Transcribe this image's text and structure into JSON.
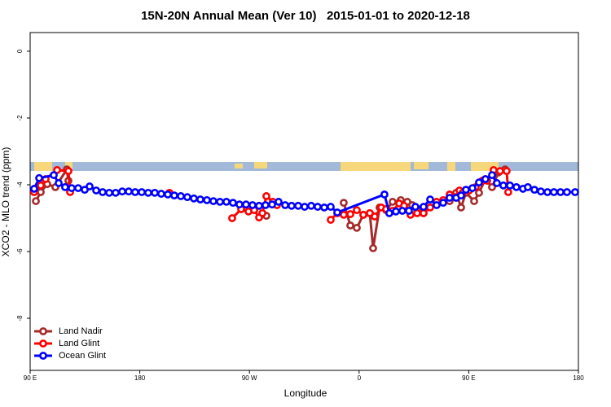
{
  "chart_data": {
    "type": "line",
    "title": "15N-20N Annual Mean (Ver 10)   2015-01-01 to 2020-12-18",
    "x_label": "Longitude",
    "y_label": "XCO2 - MLO trend (ppm)",
    "xlim": [
      90,
      540
    ],
    "ylim": [
      -9.56,
      0.56
    ],
    "xticks": [
      {
        "value": 90,
        "label": "90 E"
      },
      180,
      {
        "value": 270,
        "label": "90 W"
      },
      {
        "value": 360,
        "label": "0"
      },
      {
        "value": 450,
        "label": "90 E"
      },
      {
        "value": 540,
        "label": "180"
      }
    ],
    "yticks": [
      0,
      -2,
      -4,
      -6,
      -8
    ],
    "legend": "bottom-left",
    "series": [
      {
        "name": "Land Nadir",
        "color": "#a52a2a",
        "x": [
          94.7,
          98.7,
          104.0,
          110.7,
          120.1,
          121.4,
          null,
          283.9,
          null,
          347.4,
          352.8,
          358.1,
          363.5,
          368.8,
          371.5,
          376.8,
          382.2,
          387.5,
          394.2,
          399.6,
          403.6,
          407.6,
          412.9,
          null,
          434.3,
          439.7,
          443.7,
          447.7,
          454.4,
          458.4,
          463.7,
          469.1,
          474.4,
          479.8
        ],
        "values": [
          -4.49,
          -4.22,
          -3.98,
          -4.07,
          -3.54,
          -3.88,
          null,
          -4.93,
          null,
          -4.54,
          -5.22,
          -5.29,
          -4.9,
          -4.85,
          -5.9,
          -4.68,
          -4.76,
          -4.51,
          -4.46,
          -4.51,
          -4.61,
          -4.76,
          -4.85,
          null,
          -4.49,
          -4.24,
          -4.68,
          -4.24,
          -4.49,
          -4.24,
          -3.83,
          -4.07,
          -3.63,
          -3.54
        ]
      },
      {
        "name": "Land Glint",
        "color": "#ff0000",
        "x": [
          93.3,
          98.7,
          102.7,
          112.1,
          121.4,
          122.8,
          null,
          204.3,
          null,
          255.8,
          263.2,
          269.2,
          273.9,
          277.9,
          280.6,
          283.9,
          289.2,
          292.6,
          null,
          336.7,
          342.1,
          347.4,
          352.8,
          358.1,
          363.5,
          368.8,
          372.8,
          378.2,
          382.2,
          387.5,
          392.9,
          396.9,
          402.2,
          407.6,
          412.9,
          418.3,
          423.6,
          429.0,
          434.3,
          438.3,
          442.4,
          445.0,
          450.4,
          455.7,
          461.1,
          465.1,
          470.4,
          475.7,
          481.1,
          482.4
        ],
        "values": [
          -4.22,
          -4.02,
          -3.83,
          -3.56,
          -3.59,
          -4.22,
          null,
          -4.24,
          null,
          -5.0,
          -4.73,
          -4.8,
          -4.76,
          -4.98,
          -4.85,
          -4.34,
          -4.51,
          -4.61,
          null,
          -5.05,
          -4.85,
          -4.9,
          -4.88,
          -4.76,
          -4.9,
          -4.85,
          -4.95,
          -4.68,
          -4.73,
          -4.78,
          -4.56,
          -4.63,
          -4.9,
          -4.85,
          -4.85,
          -4.68,
          -4.51,
          -4.46,
          -4.29,
          -4.37,
          -4.17,
          -4.24,
          -4.17,
          -4.07,
          -3.88,
          -3.88,
          -3.56,
          -3.59,
          -3.59,
          -4.22
        ]
      },
      {
        "name": "Ocean Glint",
        "color": "#0000ff",
        "x": [
          93.3,
          97.4,
          109.4,
          113.4,
          118.7,
          124.1,
          129.4,
          134.8,
          138.8,
          144.2,
          149.5,
          154.9,
          160.2,
          165.6,
          170.9,
          176.2,
          181.6,
          186.9,
          192.3,
          197.6,
          203.0,
          208.3,
          213.7,
          219.0,
          224.4,
          229.7,
          235.1,
          240.4,
          245.8,
          251.1,
          256.5,
          261.8,
          267.2,
          272.5,
          277.9,
          283.2,
          288.6,
          293.9,
          299.3,
          304.6,
          310.0,
          315.3,
          320.7,
          326.0,
          331.4,
          336.7,
          342.1,
          380.8,
          384.8,
          390.2,
          395.5,
          400.9,
          406.2,
          412.9,
          418.3,
          423.6,
          429.0,
          434.3,
          439.7,
          443.7,
          447.7,
          453.0,
          458.4,
          463.7,
          469.1,
          473.1,
          478.4,
          483.8,
          489.1,
          494.5,
          498.5,
          503.9,
          509.2,
          514.6,
          519.9,
          525.3,
          530.6,
          537.3
        ],
        "values": [
          -4.12,
          -3.8,
          -3.71,
          -3.95,
          -4.07,
          -4.1,
          -4.1,
          -4.15,
          -4.05,
          -4.17,
          -4.22,
          -4.24,
          -4.24,
          -4.2,
          -4.2,
          -4.22,
          -4.22,
          -4.24,
          -4.24,
          -4.27,
          -4.29,
          -4.32,
          -4.34,
          -4.37,
          -4.41,
          -4.44,
          -4.46,
          -4.49,
          -4.51,
          -4.51,
          -4.54,
          -4.59,
          -4.59,
          -4.61,
          -4.63,
          -4.61,
          -4.59,
          -4.51,
          -4.61,
          -4.63,
          -4.63,
          -4.66,
          -4.63,
          -4.66,
          -4.68,
          -4.66,
          -4.83,
          -4.29,
          -4.85,
          -4.8,
          -4.78,
          -4.78,
          -4.66,
          -4.66,
          -4.44,
          -4.61,
          -4.54,
          -4.39,
          -4.39,
          -4.32,
          -4.15,
          -4.1,
          -3.93,
          -3.83,
          -3.71,
          -3.95,
          -4.02,
          -4.02,
          -4.07,
          -4.12,
          -4.07,
          -4.15,
          -4.2,
          -4.22,
          -4.22,
          -4.22,
          -4.22,
          -4.22
        ]
      }
    ]
  }
}
